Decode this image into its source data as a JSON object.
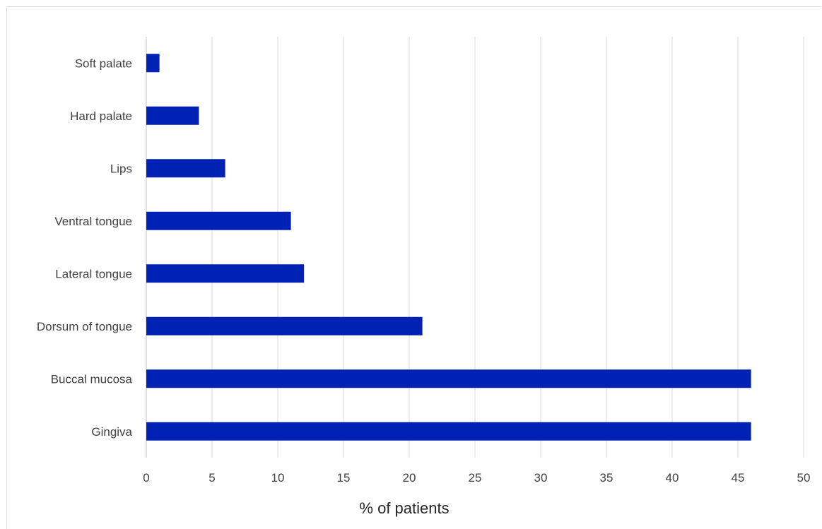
{
  "chart_data": {
    "type": "bar",
    "orientation": "horizontal",
    "title": "",
    "xlabel": "% of patients",
    "ylabel": "",
    "categories": [
      "Gingiva",
      "Buccal mucosa",
      "Dorsum of tongue",
      "Lateral tongue",
      "Ventral tongue",
      "Lips",
      "Hard palate",
      "Soft palate"
    ],
    "values": [
      46,
      46,
      21,
      12,
      11,
      6,
      4,
      1
    ],
    "xlim": [
      0,
      50
    ],
    "xticks": [
      0,
      5,
      10,
      15,
      20,
      25,
      30,
      35,
      40,
      45,
      50
    ],
    "grid": "vertical",
    "legend": "none",
    "colors": {
      "bar": "#0022b4",
      "grid": "#d9d9d9",
      "axis": "#bfbfbf"
    }
  }
}
